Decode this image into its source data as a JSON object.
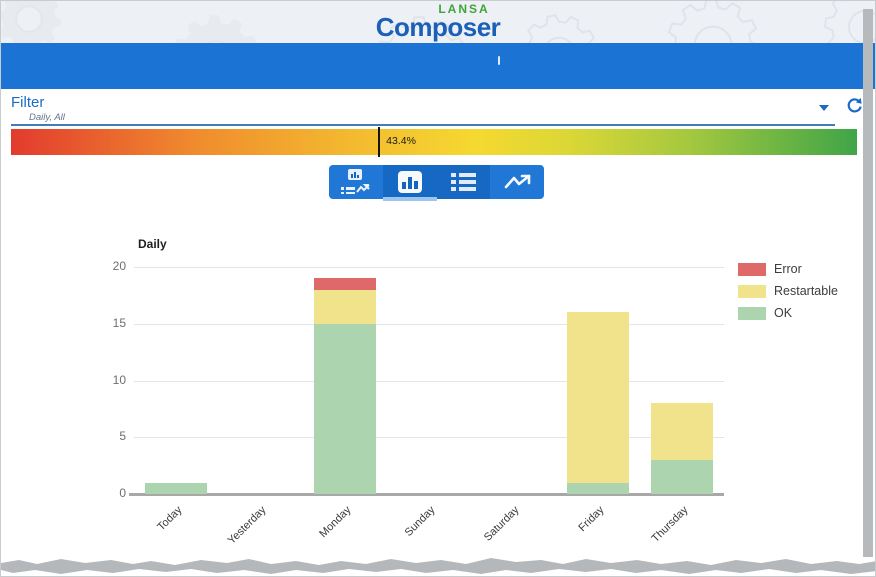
{
  "app": {
    "brand_top": "LANSA",
    "brand_main": "Composer"
  },
  "filter": {
    "label": "Filter",
    "value": "Daily, All"
  },
  "gauge": {
    "label": "43.4%",
    "percent": 43.4,
    "gradient": [
      "#e23b2e 0%",
      "#f08c2e 22%",
      "#f3b92f 40%",
      "#f5d930 55%",
      "#dbd736 66%",
      "#a5c83f 80%",
      "#3fa547 100%"
    ]
  },
  "toolbar": {
    "buttons": [
      {
        "name": "combined-view"
      },
      {
        "name": "bar-chart-view",
        "selected": true
      },
      {
        "name": "list-view"
      },
      {
        "name": "trend-view"
      }
    ]
  },
  "chart_data": {
    "type": "bar",
    "stacked": true,
    "title": "Daily",
    "categories": [
      "Today",
      "Yesterday",
      "Monday",
      "Sunday",
      "Saturday",
      "Friday",
      "Thursday"
    ],
    "series": [
      {
        "name": "Error",
        "color": "#df6868",
        "values": [
          0,
          0,
          1,
          0,
          0,
          0,
          0
        ]
      },
      {
        "name": "Restartable",
        "color": "#f0e38b",
        "values": [
          0,
          0,
          3,
          0,
          0,
          15,
          5
        ]
      },
      {
        "name": "OK",
        "color": "#acd5af",
        "values": [
          1,
          0,
          15,
          0,
          0,
          1,
          3
        ]
      }
    ],
    "ylim": [
      0,
      20
    ],
    "yticks": [
      0,
      5,
      10,
      15,
      20
    ],
    "xlabel": "",
    "ylabel": "",
    "grid": true,
    "legend_position": "right"
  }
}
